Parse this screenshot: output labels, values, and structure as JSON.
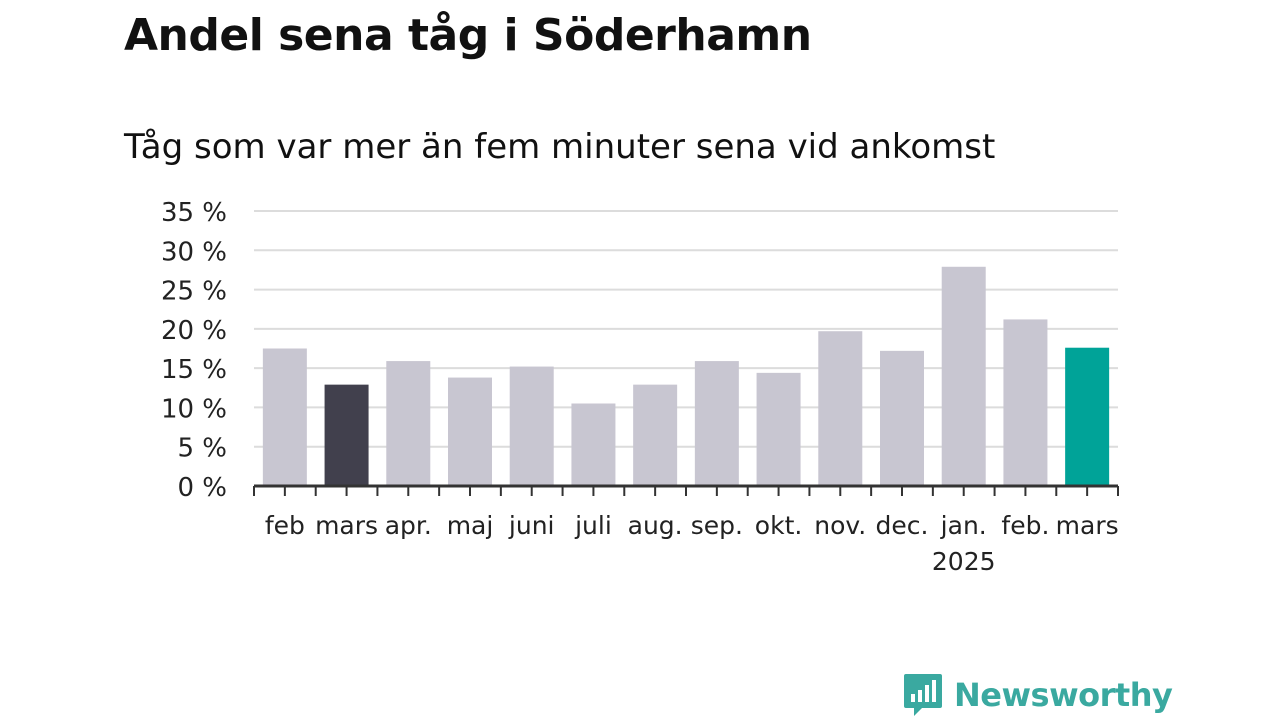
{
  "header": {
    "title": "Andel sena tåg i Söderhamn",
    "subtitle": "Tåg som var mer än fem minuter sena vid ankomst"
  },
  "logo": {
    "text": "Newsworthy",
    "icon": "newsworthy-chart-icon",
    "color": "#3aa9a0"
  },
  "colors": {
    "bar_default": "#c8c6d1",
    "bar_previous_year": "#41404d",
    "bar_latest": "#00a398",
    "grid": "#dcdcdc",
    "axis": "#333333"
  },
  "chart_data": {
    "type": "bar",
    "categories": [
      "feb",
      "mars",
      "apr.",
      "maj",
      "juni",
      "juli",
      "aug.",
      "sep.",
      "okt.",
      "nov.",
      "dec.",
      "jan.",
      "feb.",
      "mars"
    ],
    "year_labels": [
      {
        "index": 11,
        "label": "2025"
      }
    ],
    "values": [
      17.5,
      12.9,
      15.9,
      13.8,
      15.2,
      10.5,
      12.9,
      15.9,
      14.4,
      19.7,
      17.2,
      27.9,
      21.2,
      17.6
    ],
    "highlight": {
      "1": "previous_year",
      "13": "latest"
    },
    "ylim": [
      0,
      35
    ],
    "yticks": [
      0,
      5,
      10,
      15,
      20,
      25,
      30,
      35
    ],
    "ytick_labels": [
      "0 %",
      "5 %",
      "10 %",
      "15 %",
      "20 %",
      "25 %",
      "30 %",
      "35 %"
    ],
    "grid": true,
    "xlabel": "",
    "ylabel": ""
  }
}
